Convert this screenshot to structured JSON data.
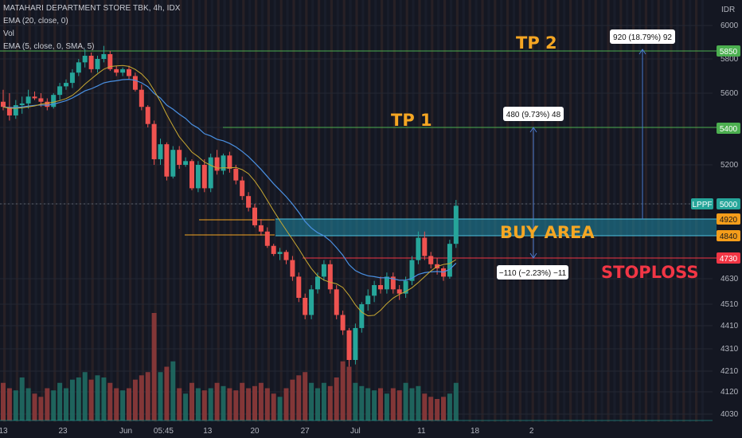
{
  "header": {
    "symbol": "MATAHARI DEPARTMENT STORE TBK, 4h, IDX",
    "indicators": [
      "EMA (20, close, 0)",
      "Vol",
      "EMA (5, close, 0, SMA, 5)"
    ],
    "currency": "IDR"
  },
  "chart_data": {
    "type": "candlestick",
    "y_axis": {
      "range": [
        4000,
        6150
      ],
      "ticks": [
        6000,
        5800,
        5600,
        5400,
        5200,
        5000,
        4840,
        4730,
        4630,
        4510,
        4410,
        4310,
        4210,
        4120,
        4030
      ]
    },
    "x_axis": {
      "ticks": [
        {
          "label": "13",
          "pos": 0.0
        },
        {
          "label": "23",
          "pos": 9.5
        },
        {
          "label": "Jun",
          "pos": 19.5
        },
        {
          "label": "05:45",
          "pos": 25.5
        },
        {
          "label": "13",
          "pos": 32.5
        },
        {
          "label": "20",
          "pos": 40
        },
        {
          "label": "27",
          "pos": 48
        },
        {
          "label": "Jul",
          "pos": 56
        },
        {
          "label": "11",
          "pos": 66.5
        },
        {
          "label": "18",
          "pos": 75
        },
        {
          "label": "2",
          "pos": 84
        }
      ]
    },
    "candles": [
      [
        5550,
        5620,
        5500,
        5520
      ],
      [
        5520,
        5600,
        5440,
        5470
      ],
      [
        5470,
        5560,
        5450,
        5530
      ],
      [
        5530,
        5580,
        5480,
        5540
      ],
      [
        5540,
        5620,
        5510,
        5580
      ],
      [
        5580,
        5610,
        5560,
        5570
      ],
      [
        5570,
        5600,
        5520,
        5550
      ],
      [
        5550,
        5570,
        5500,
        5520
      ],
      [
        5520,
        5600,
        5510,
        5590
      ],
      [
        5590,
        5660,
        5560,
        5640
      ],
      [
        5640,
        5680,
        5620,
        5660
      ],
      [
        5660,
        5740,
        5630,
        5720
      ],
      [
        5720,
        5800,
        5700,
        5780
      ],
      [
        5780,
        5860,
        5750,
        5820
      ],
      [
        5820,
        5840,
        5720,
        5740
      ],
      [
        5740,
        5820,
        5720,
        5800
      ],
      [
        5800,
        5880,
        5780,
        5830
      ],
      [
        5830,
        5850,
        5730,
        5740
      ],
      [
        5740,
        5760,
        5700,
        5720
      ],
      [
        5720,
        5750,
        5700,
        5740
      ],
      [
        5740,
        5760,
        5680,
        5700
      ],
      [
        5700,
        5720,
        5610,
        5620
      ],
      [
        5620,
        5650,
        5500,
        5520
      ],
      [
        5520,
        5530,
        5400,
        5420
      ],
      [
        5420,
        5440,
        5200,
        5230
      ],
      [
        5230,
        5340,
        5200,
        5310
      ],
      [
        5310,
        5320,
        5120,
        5140
      ],
      [
        5140,
        5300,
        5130,
        5280
      ],
      [
        5280,
        5300,
        5180,
        5200
      ],
      [
        5200,
        5240,
        5190,
        5220
      ],
      [
        5220,
        5230,
        5070,
        5080
      ],
      [
        5080,
        5220,
        5060,
        5200
      ],
      [
        5200,
        5230,
        5060,
        5080
      ],
      [
        5080,
        5260,
        5060,
        5240
      ],
      [
        5240,
        5280,
        5150,
        5170
      ],
      [
        5170,
        5260,
        5150,
        5250
      ],
      [
        5250,
        5270,
        5160,
        5180
      ],
      [
        5180,
        5200,
        5100,
        5120
      ],
      [
        5120,
        5140,
        5020,
        5040
      ],
      [
        5040,
        5060,
        4960,
        4980
      ],
      [
        4980,
        5000,
        4880,
        4890
      ],
      [
        4890,
        4920,
        4840,
        4860
      ],
      [
        4860,
        4880,
        4780,
        4790
      ],
      [
        4790,
        4800,
        4740,
        4750
      ],
      [
        4750,
        4780,
        4720,
        4760
      ],
      [
        4760,
        4770,
        4700,
        4720
      ],
      [
        4720,
        4740,
        4620,
        4640
      ],
      [
        4640,
        4660,
        4520,
        4540
      ],
      [
        4540,
        4560,
        4440,
        4460
      ],
      [
        4460,
        4600,
        4440,
        4580
      ],
      [
        4580,
        4660,
        4560,
        4640
      ],
      [
        4640,
        4720,
        4620,
        4700
      ],
      [
        4700,
        4720,
        4560,
        4580
      ],
      [
        4580,
        4600,
        4440,
        4460
      ],
      [
        4460,
        4480,
        4370,
        4390
      ],
      [
        4390,
        4400,
        4230,
        4260
      ],
      [
        4260,
        4420,
        4240,
        4400
      ],
      [
        4400,
        4520,
        4380,
        4510
      ],
      [
        4510,
        4580,
        4480,
        4550
      ],
      [
        4550,
        4620,
        4520,
        4600
      ],
      [
        4600,
        4640,
        4560,
        4580
      ],
      [
        4580,
        4660,
        4560,
        4640
      ],
      [
        4640,
        4660,
        4560,
        4580
      ],
      [
        4580,
        4600,
        4530,
        4560
      ],
      [
        4560,
        4640,
        4540,
        4620
      ],
      [
        4620,
        4740,
        4600,
        4720
      ],
      [
        4720,
        4860,
        4700,
        4830
      ],
      [
        4830,
        4860,
        4720,
        4740
      ],
      [
        4740,
        4760,
        4680,
        4700
      ],
      [
        4700,
        4730,
        4650,
        4680
      ],
      [
        4680,
        4690,
        4620,
        4640
      ],
      [
        4640,
        4820,
        4630,
        4800
      ],
      [
        4800,
        5020,
        4780,
        4990
      ]
    ],
    "volumes": [
      0.35,
      0.3,
      0.28,
      0.4,
      0.3,
      0.25,
      0.22,
      0.3,
      0.28,
      0.35,
      0.3,
      0.38,
      0.4,
      0.45,
      0.38,
      0.42,
      0.4,
      0.35,
      0.3,
      0.28,
      0.3,
      0.38,
      0.42,
      0.45,
      1.0,
      0.45,
      0.5,
      0.55,
      0.3,
      0.25,
      0.35,
      0.3,
      0.28,
      0.3,
      0.35,
      0.32,
      0.3,
      0.28,
      0.35,
      0.3,
      0.32,
      0.35,
      0.3,
      0.25,
      0.22,
      0.3,
      0.38,
      0.42,
      0.45,
      0.35,
      0.3,
      0.35,
      0.32,
      0.4,
      0.55,
      0.5,
      0.35,
      0.32,
      0.3,
      0.28,
      0.3,
      0.25,
      0.3,
      0.28,
      0.35,
      0.3,
      0.32,
      0.25,
      0.22,
      0.2,
      0.22,
      0.25,
      0.35
    ],
    "levels": [
      {
        "name": "TP 2",
        "value": 5850,
        "color": "#4caf50"
      },
      {
        "name": "TP 1",
        "value": 5400,
        "color": "#4caf50"
      },
      {
        "name": "BUY AREA",
        "top": 4920,
        "bottom": 4840,
        "color": "#2a9fbf"
      },
      {
        "name": "STOPLOSS",
        "value": 4730,
        "color": "#f23645"
      }
    ],
    "current_price": {
      "label": "LPPF",
      "value": 5000
    }
  },
  "tags": {
    "tp2": "5850",
    "tp1": "5400",
    "buy_top": "4920",
    "buy_bottom": "4840",
    "stop": "4730",
    "lppf": "LPPF",
    "last": "5000"
  },
  "annotations": {
    "tp2": "TP 2",
    "tp1": "TP 1",
    "buy": "BUY AREA",
    "stop": "STOPLOSS"
  },
  "measures": {
    "tp2": "920 (18.79%) 92",
    "tp1": "480 (9.73%) 48",
    "stop": "−110 (−2.23%) −11"
  },
  "colors": {
    "up": "#26a69a",
    "down": "#ef5350",
    "ema20": "#4a90e2",
    "ema5": "#c8a832",
    "annotation_orange": "#f5a623",
    "annotation_red": "#f23645"
  }
}
